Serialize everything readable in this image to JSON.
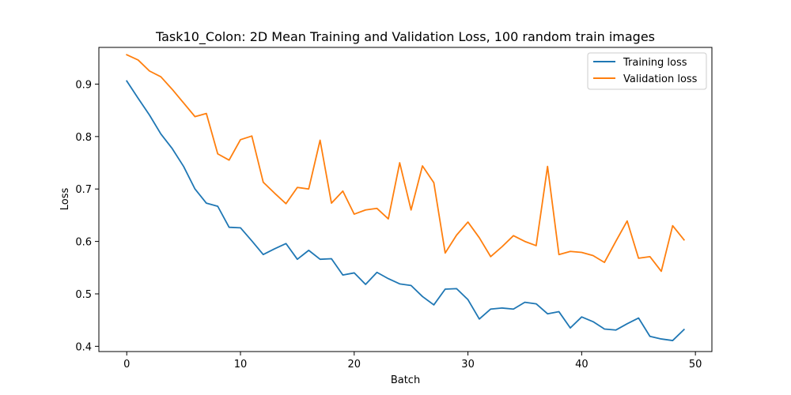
{
  "chart_data": {
    "type": "line",
    "title": "Task10_Colon: 2D Mean Training and Validation Loss, 100 random train images",
    "xlabel": "Batch",
    "ylabel": "Loss",
    "xlim": [
      -2.45,
      51.45
    ],
    "ylim": [
      0.39,
      0.97
    ],
    "xticks": [
      0,
      10,
      20,
      30,
      40,
      50
    ],
    "yticks": [
      0.4,
      0.5,
      0.6,
      0.7,
      0.8,
      0.9
    ],
    "xtick_labels": [
      "0",
      "10",
      "20",
      "30",
      "40",
      "50"
    ],
    "ytick_labels": [
      "0.4",
      "0.5",
      "0.6",
      "0.7",
      "0.8",
      "0.9"
    ],
    "grid": false,
    "legend_position": "top-right",
    "x": [
      0,
      1,
      2,
      3,
      4,
      5,
      6,
      7,
      8,
      9,
      10,
      11,
      12,
      13,
      14,
      15,
      16,
      17,
      18,
      19,
      20,
      21,
      22,
      23,
      24,
      25,
      26,
      27,
      28,
      29,
      30,
      31,
      32,
      33,
      34,
      35,
      36,
      37,
      38,
      39,
      40,
      41,
      42,
      43,
      44,
      45,
      46,
      47,
      48,
      49
    ],
    "series": [
      {
        "name": "Training loss",
        "color": "#1f77b4",
        "values": [
          0.906,
          0.873,
          0.841,
          0.805,
          0.777,
          0.743,
          0.7,
          0.673,
          0.667,
          0.627,
          0.626,
          0.601,
          0.575,
          0.586,
          0.596,
          0.566,
          0.583,
          0.566,
          0.567,
          0.536,
          0.54,
          0.518,
          0.541,
          0.529,
          0.519,
          0.516,
          0.495,
          0.479,
          0.509,
          0.51,
          0.489,
          0.452,
          0.471,
          0.473,
          0.471,
          0.484,
          0.481,
          0.462,
          0.466,
          0.435,
          0.456,
          0.447,
          0.433,
          0.431,
          0.443,
          0.454,
          0.419,
          0.414,
          0.411,
          0.432
        ]
      },
      {
        "name": "Validation loss",
        "color": "#ff7f0e",
        "values": [
          0.956,
          0.946,
          0.925,
          0.914,
          0.89,
          0.864,
          0.838,
          0.844,
          0.767,
          0.755,
          0.794,
          0.801,
          0.713,
          0.692,
          0.672,
          0.703,
          0.7,
          0.793,
          0.673,
          0.696,
          0.652,
          0.66,
          0.663,
          0.643,
          0.75,
          0.66,
          0.744,
          0.712,
          0.578,
          0.612,
          0.637,
          0.607,
          0.571,
          0.59,
          0.611,
          0.6,
          0.592,
          0.743,
          0.575,
          0.581,
          0.579,
          0.573,
          0.56,
          0.6,
          0.639,
          0.568,
          0.571,
          0.543,
          0.63,
          0.603
        ]
      }
    ]
  }
}
